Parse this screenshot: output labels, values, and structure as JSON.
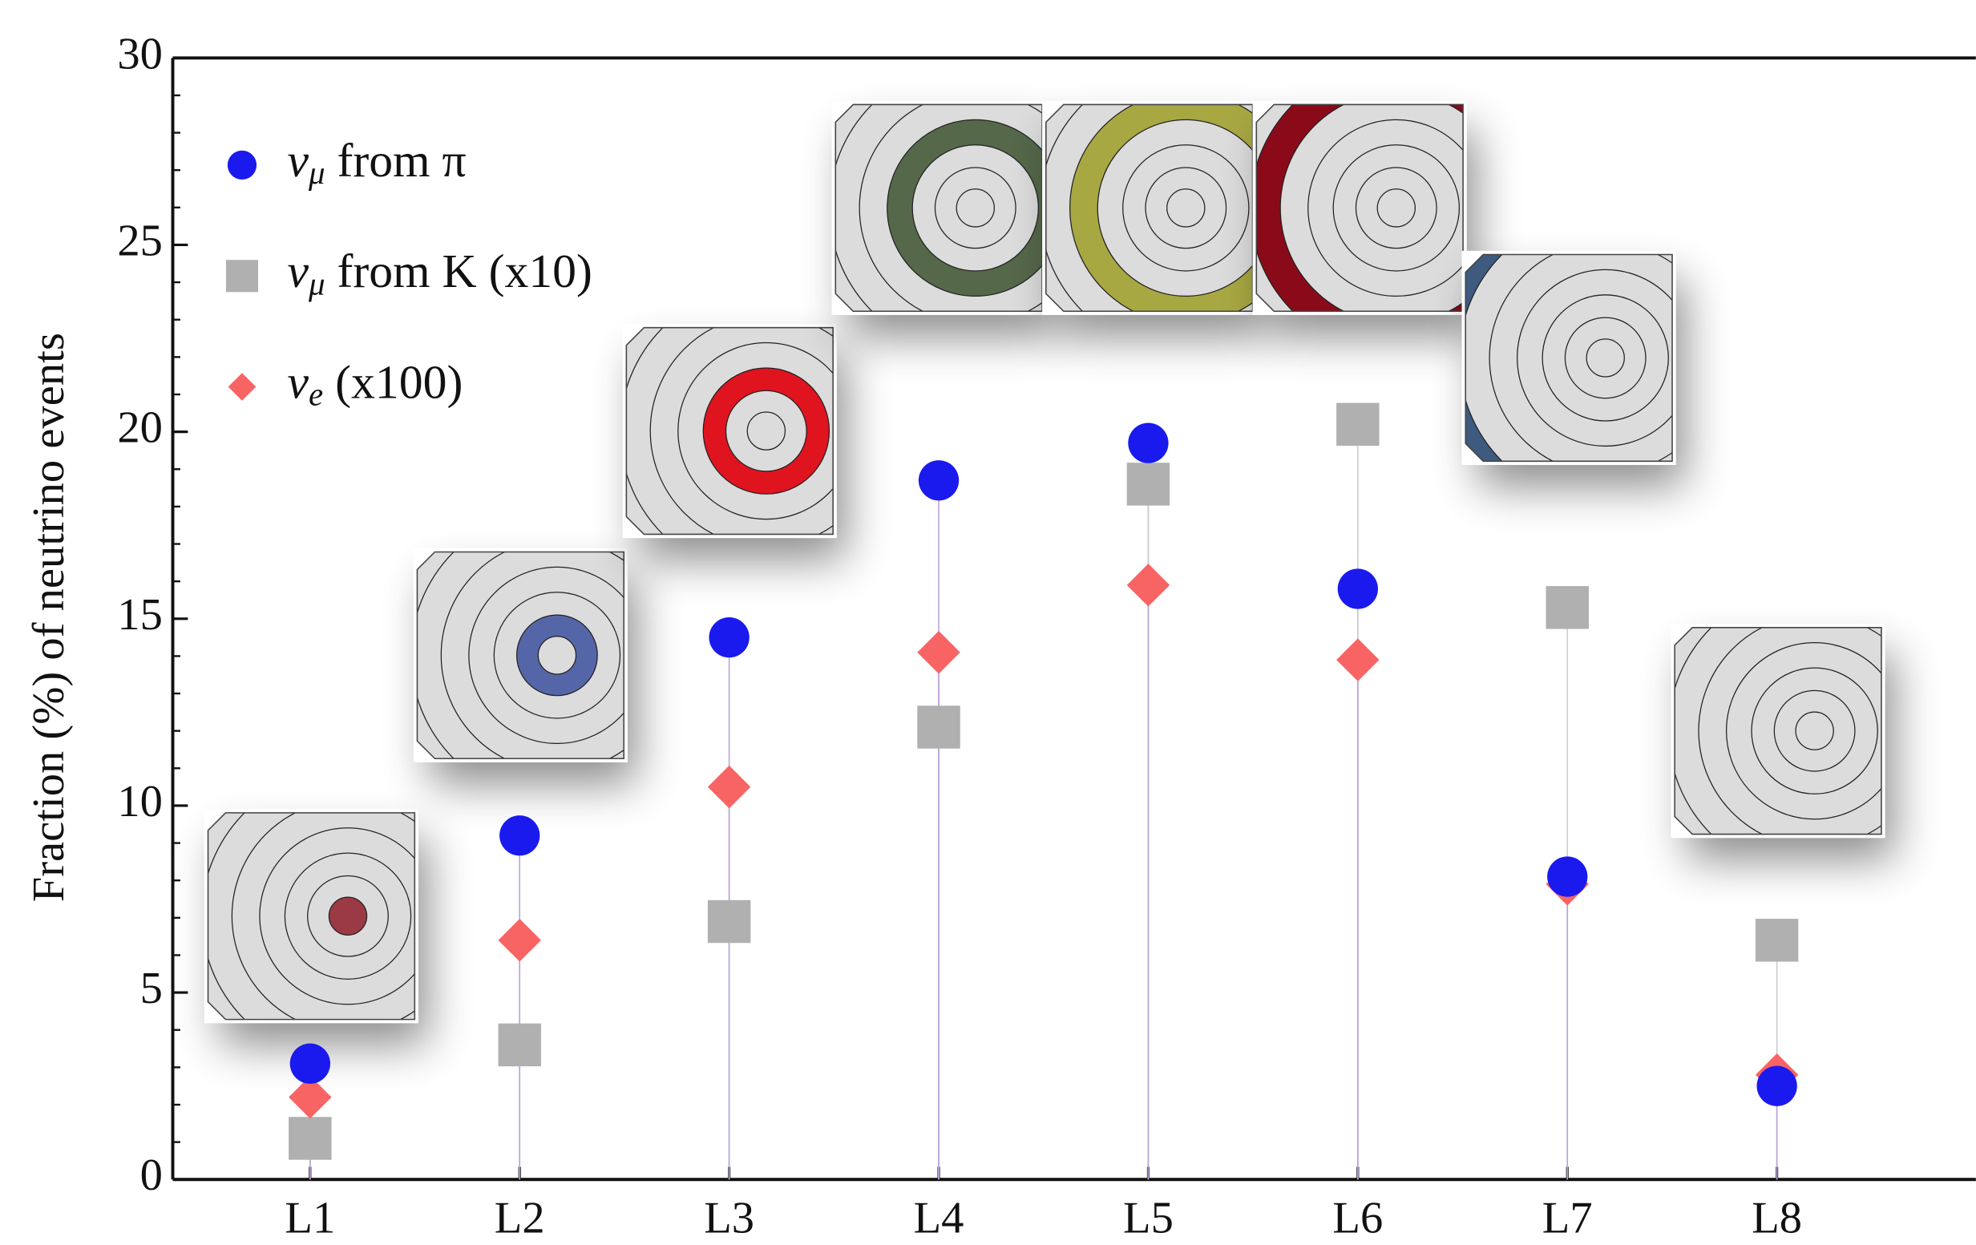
{
  "chart_data": {
    "type": "scatter",
    "ylabel": "Fraction (%) of neutrino events",
    "categories": [
      "L1",
      "L2",
      "L3",
      "L4",
      "L5",
      "L6",
      "L7",
      "L8"
    ],
    "series": [
      {
        "name": "νμ from π",
        "color": "#1a1aee",
        "marker": "circle",
        "values": [
          3.1,
          9.2,
          14.5,
          18.7,
          19.7,
          15.8,
          8.1,
          2.5
        ]
      },
      {
        "name": "νμ from K (x10)",
        "color": "#b0b0b0",
        "marker": "square",
        "values": [
          1.1,
          3.6,
          6.9,
          12.1,
          18.6,
          20.2,
          15.3,
          6.4
        ]
      },
      {
        "name": "νe (x100)",
        "color": "#f86464",
        "marker": "diamond",
        "values": [
          2.2,
          6.4,
          10.5,
          14.1,
          15.9,
          13.9,
          7.9,
          2.8
        ]
      }
    ],
    "ylim": [
      0,
      30
    ],
    "yticks": [
      0,
      5,
      10,
      15,
      20,
      25,
      30
    ],
    "legend": "upper left"
  }
}
